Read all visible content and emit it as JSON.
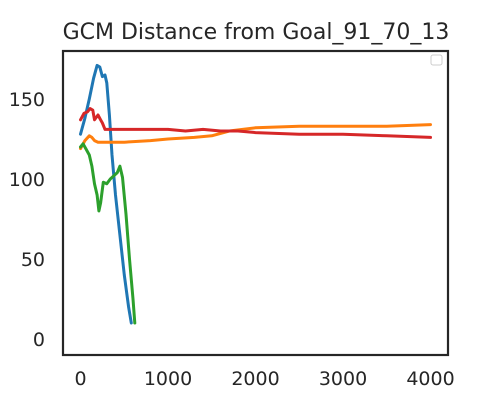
{
  "chart_data": {
    "type": "line",
    "title": "GCM Distance from Goal_91_70_13",
    "xlabel": "",
    "ylabel": "",
    "xlim": [
      -200,
      4200
    ],
    "ylim": [
      -10,
      180
    ],
    "xticks": [
      0,
      1000,
      2000,
      3000,
      4000
    ],
    "xtick_labels": [
      "0",
      "1000",
      "2000",
      "3000",
      "4000"
    ],
    "yticks": [
      0,
      50,
      100,
      150
    ],
    "ytick_labels": [
      "0",
      "50",
      "100",
      "150"
    ],
    "grid": false,
    "legend": {
      "placement": "top-right",
      "entries": []
    },
    "series": [
      {
        "color": "#1f77b4",
        "x": [
          0,
          50,
          100,
          150,
          190,
          220,
          250,
          280,
          300,
          330,
          360,
          400,
          450,
          500,
          550,
          580
        ],
        "y": [
          128,
          138,
          150,
          163,
          171,
          170,
          164,
          165,
          160,
          140,
          115,
          90,
          65,
          40,
          20,
          10
        ]
      },
      {
        "color": "#ff7f0e",
        "x": [
          0,
          50,
          100,
          130,
          160,
          200,
          300,
          500,
          800,
          1000,
          1300,
          1500,
          1700,
          2000,
          2500,
          3000,
          3500,
          4000
        ],
        "y": [
          119,
          124,
          127,
          126,
          124,
          123,
          123,
          123,
          124,
          125,
          126,
          127,
          130,
          132,
          133,
          133,
          133,
          134
        ]
      },
      {
        "color": "#2ca02c",
        "x": [
          0,
          30,
          60,
          100,
          130,
          160,
          190,
          210,
          230,
          260,
          300,
          340,
          380,
          420,
          450,
          480,
          520,
          560,
          600,
          620
        ],
        "y": [
          120,
          122,
          119,
          115,
          108,
          97,
          90,
          80,
          85,
          98,
          97,
          100,
          102,
          104,
          108,
          101,
          78,
          50,
          25,
          10
        ]
      },
      {
        "color": "#d62728",
        "x": [
          0,
          40,
          80,
          110,
          140,
          160,
          200,
          230,
          250,
          280,
          300,
          350,
          500,
          800,
          1000,
          1200,
          1400,
          1600,
          1800,
          2000,
          2500,
          3000,
          3500,
          4000
        ],
        "y": [
          137,
          141,
          142,
          144,
          143,
          137,
          140,
          137,
          135,
          131,
          131,
          131,
          131,
          131,
          131,
          130,
          131,
          130,
          130,
          129,
          128,
          128,
          127,
          126
        ]
      }
    ]
  }
}
